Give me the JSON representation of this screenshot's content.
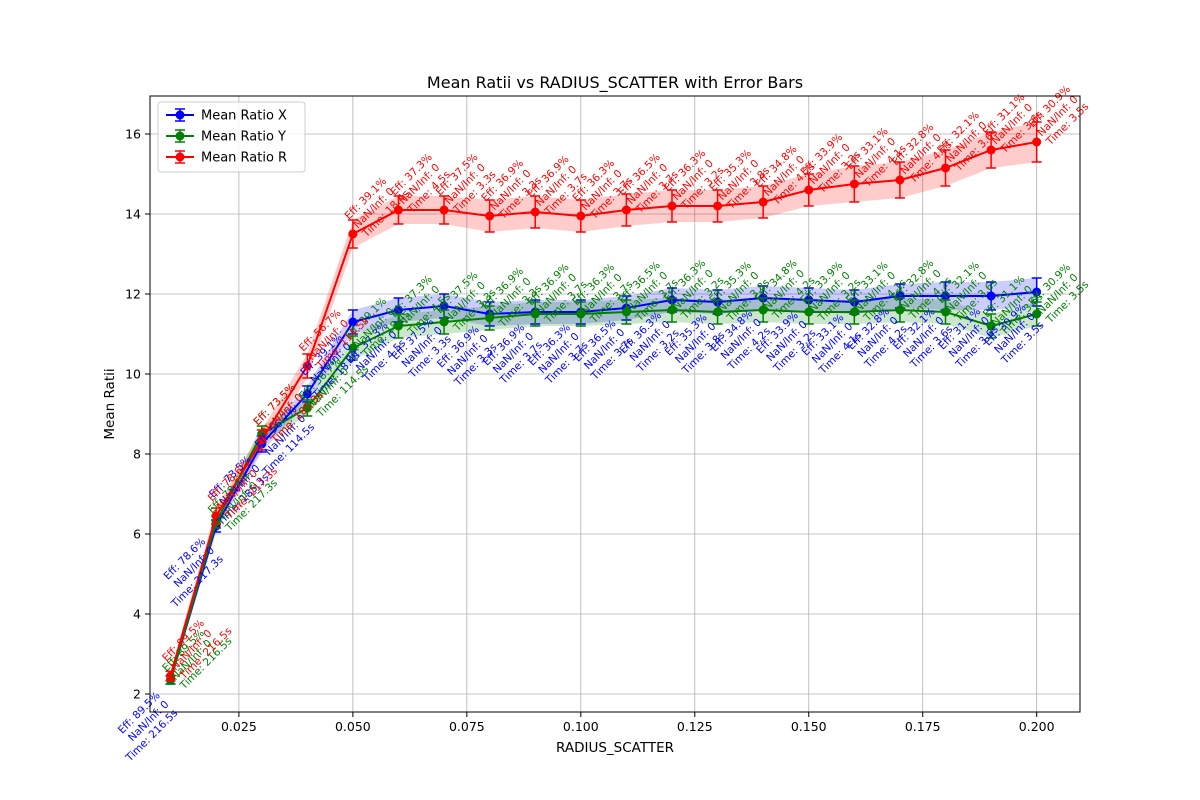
{
  "chart_data": {
    "type": "line",
    "title": "Mean Ratii vs RADIUS_SCATTER with Error Bars",
    "xlabel": "RADIUS_SCATTER",
    "ylabel": "Mean Ratii",
    "xlim": [
      0.0055,
      0.2095
    ],
    "ylim": [
      1.55,
      16.95
    ],
    "xticks": [
      "0.025",
      "0.050",
      "0.075",
      "0.100",
      "0.125",
      "0.150",
      "0.175",
      "0.200"
    ],
    "xtick_values": [
      0.025,
      0.05,
      0.075,
      0.1,
      0.125,
      0.15,
      0.175,
      0.2
    ],
    "yticks": [
      "2",
      "4",
      "6",
      "8",
      "10",
      "12",
      "14",
      "16"
    ],
    "ytick_values": [
      2,
      4,
      6,
      8,
      10,
      12,
      14,
      16
    ],
    "grid": true,
    "legend_position": "top-left",
    "x": [
      0.01,
      0.02,
      0.03,
      0.04,
      0.05,
      0.06,
      0.07,
      0.08,
      0.09,
      0.1,
      0.11,
      0.12,
      0.13,
      0.14,
      0.15,
      0.16,
      0.17,
      0.18,
      0.19,
      0.2
    ],
    "series": [
      {
        "name": "Mean Ratio X",
        "color": "#0000ff",
        "values": [
          2.35,
          6.2,
          8.25,
          9.5,
          11.3,
          11.6,
          11.7,
          11.5,
          11.55,
          11.55,
          11.65,
          11.85,
          11.8,
          11.9,
          11.85,
          11.8,
          11.95,
          11.95,
          11.95,
          12.05
        ],
        "errors": [
          0.1,
          0.15,
          0.2,
          0.2,
          0.3,
          0.3,
          0.3,
          0.3,
          0.3,
          0.3,
          0.3,
          0.3,
          0.3,
          0.3,
          0.3,
          0.3,
          0.3,
          0.35,
          0.35,
          0.35
        ],
        "annotations": [
          [
            "Eff: 89.5%",
            "NaN/Inf: 0",
            "Time: 216.5s"
          ],
          [
            "Eff: 78.6%",
            "NaN/Inf: 0",
            "Time: 217.3s"
          ],
          [
            "Eff: 73.5%",
            "NaN/Inf: 0",
            "Time: 185.3s"
          ],
          [
            "Eff: 56.7%",
            "NaN/Inf: 0",
            "Time: 114.5s"
          ],
          [
            "Eff: 39.1%",
            "NaN/Inf: 0",
            "Time: 18.4s"
          ],
          [
            "Eff: 37.3%",
            "NaN/Inf: 0",
            "Time: 4.5s"
          ],
          [
            "Eff: 37.5%",
            "NaN/Inf: 0",
            "Time: 3.3s"
          ],
          [
            "Eff: 36.9%",
            "NaN/Inf: 0",
            "Time: 3.3s"
          ],
          [
            "Eff: 36.9%",
            "NaN/Inf: 0",
            "Time: 3.7s"
          ],
          [
            "Eff: 36.3%",
            "NaN/Inf: 0",
            "Time: 3.7s"
          ],
          [
            "Eff: 36.5%",
            "NaN/Inf: 0",
            "Time: 3.7s"
          ],
          [
            "Eff: 36.3%",
            "NaN/Inf: 0",
            "Time: 3.2s"
          ],
          [
            "Eff: 35.3%",
            "NaN/Inf: 0",
            "Time: 3.8s"
          ],
          [
            "Eff: 34.8%",
            "NaN/Inf: 0",
            "Time: 4.2s"
          ],
          [
            "Eff: 33.9%",
            "NaN/Inf: 0",
            "Time: 3.2s"
          ],
          [
            "Eff: 33.1%",
            "NaN/Inf: 0",
            "Time: 4.1s"
          ],
          [
            "Eff: 32.8%",
            "NaN/Inf: 0",
            "Time: 4.2s"
          ],
          [
            "Eff: 32.1%",
            "NaN/Inf: 0",
            "Time: 3.6s"
          ],
          [
            "Eff: 31.1%",
            "NaN/Inf: 0",
            "Time: 3.6s"
          ],
          [
            "Eff: 30.9%",
            "NaN/Inf: 0",
            "Time: 3.5s"
          ]
        ]
      },
      {
        "name": "Mean Ratio Y",
        "color": "#008000",
        "values": [
          2.35,
          6.3,
          8.5,
          9.15,
          10.65,
          11.2,
          11.3,
          11.4,
          11.5,
          11.5,
          11.55,
          11.6,
          11.55,
          11.6,
          11.55,
          11.55,
          11.6,
          11.55,
          11.2,
          11.5
        ],
        "errors": [
          0.1,
          0.15,
          0.2,
          0.2,
          0.3,
          0.3,
          0.3,
          0.3,
          0.3,
          0.3,
          0.3,
          0.3,
          0.3,
          0.3,
          0.3,
          0.3,
          0.3,
          0.3,
          0.3,
          0.3
        ],
        "annotations": [
          [
            "Eff: 89.5%",
            "NaN/Inf: 0",
            "Time: 216.5s"
          ],
          [
            "Eff: 78.6%",
            "NaN/Inf: 0",
            "Time: 217.3s"
          ],
          [
            "Eff: 73.5%",
            "NaN/Inf: 0",
            "Time: 185.3s"
          ],
          [
            "Eff: 56.7%",
            "NaN/Inf: 0",
            "Time: 114.5s"
          ],
          [
            "Eff: 39.1%",
            "NaN/Inf: 0",
            "Time: 18.4s"
          ],
          [
            "Eff: 37.3%",
            "NaN/Inf: 0",
            "Time: 4.5s"
          ],
          [
            "Eff: 37.5%",
            "NaN/Inf: 0",
            "Time: 3.3s"
          ],
          [
            "Eff: 36.9%",
            "NaN/Inf: 0",
            "Time: 3.3s"
          ],
          [
            "Eff: 36.9%",
            "NaN/Inf: 0",
            "Time: 3.7s"
          ],
          [
            "Eff: 36.3%",
            "NaN/Inf: 0",
            "Time: 3.7s"
          ],
          [
            "Eff: 36.5%",
            "NaN/Inf: 0",
            "Time: 3.7s"
          ],
          [
            "Eff: 36.3%",
            "NaN/Inf: 0",
            "Time: 3.2s"
          ],
          [
            "Eff: 35.3%",
            "NaN/Inf: 0",
            "Time: 3.8s"
          ],
          [
            "Eff: 34.8%",
            "NaN/Inf: 0",
            "Time: 4.2s"
          ],
          [
            "Eff: 33.9%",
            "NaN/Inf: 0",
            "Time: 3.2s"
          ],
          [
            "Eff: 33.1%",
            "NaN/Inf: 0",
            "Time: 4.1s"
          ],
          [
            "Eff: 32.8%",
            "NaN/Inf: 0",
            "Time: 4.2s"
          ],
          [
            "Eff: 32.1%",
            "NaN/Inf: 0",
            "Time: 3.6s"
          ],
          [
            "Eff: 31.1%",
            "NaN/Inf: 0",
            "Time: 3.6s"
          ],
          [
            "Eff: 30.9%",
            "NaN/Inf: 0",
            "Time: 3.5s"
          ]
        ]
      },
      {
        "name": "Mean Ratio R",
        "color": "#ff0000",
        "values": [
          2.45,
          6.45,
          8.35,
          10.2,
          13.5,
          14.1,
          14.1,
          13.95,
          14.05,
          13.95,
          14.1,
          14.2,
          14.2,
          14.3,
          14.6,
          14.75,
          14.85,
          15.15,
          15.6,
          15.8
        ],
        "errors": [
          0.12,
          0.2,
          0.25,
          0.3,
          0.35,
          0.35,
          0.35,
          0.4,
          0.4,
          0.4,
          0.4,
          0.4,
          0.4,
          0.4,
          0.4,
          0.45,
          0.45,
          0.45,
          0.45,
          0.5
        ],
        "annotations": [
          [
            "Eff: 89.5%",
            "NaN/Inf: 0",
            "Time: 216.5s"
          ],
          [
            "Eff: 78.6%",
            "NaN/Inf: 0",
            "Time: 217.3s"
          ],
          [
            "Eff: 73.5%",
            "NaN/Inf: 0",
            "Time: 185.3s"
          ],
          [
            "Eff: 56.7%",
            "NaN/Inf: 0",
            "Time: 114.5s"
          ],
          [
            "Eff: 39.1%",
            "NaN/Inf: 0",
            "Time: 18.4s"
          ],
          [
            "Eff: 37.3%",
            "NaN/Inf: 0",
            "Time: 4.5s"
          ],
          [
            "Eff: 37.5%",
            "NaN/Inf: 0",
            "Time: 3.3s"
          ],
          [
            "Eff: 36.9%",
            "NaN/Inf: 0",
            "Time: 3.3s"
          ],
          [
            "Eff: 36.9%",
            "NaN/Inf: 0",
            "Time: 3.7s"
          ],
          [
            "Eff: 36.3%",
            "NaN/Inf: 0",
            "Time: 3.7s"
          ],
          [
            "Eff: 36.5%",
            "NaN/Inf: 0",
            "Time: 3.7s"
          ],
          [
            "Eff: 36.3%",
            "NaN/Inf: 0",
            "Time: 3.2s"
          ],
          [
            "Eff: 35.3%",
            "NaN/Inf: 0",
            "Time: 3.8s"
          ],
          [
            "Eff: 34.8%",
            "NaN/Inf: 0",
            "Time: 4.2s"
          ],
          [
            "Eff: 33.9%",
            "NaN/Inf: 0",
            "Time: 3.2s"
          ],
          [
            "Eff: 33.1%",
            "NaN/Inf: 0",
            "Time: 4.1s"
          ],
          [
            "Eff: 32.8%",
            "NaN/Inf: 0",
            "Time: 4.2s"
          ],
          [
            "Eff: 32.1%",
            "NaN/Inf: 0",
            "Time: 3.6s"
          ],
          [
            "Eff: 31.1%",
            "NaN/Inf: 0",
            "Time: 3.6s"
          ],
          [
            "Eff: 30.9%",
            "NaN/Inf: 0",
            "Time: 3.5s"
          ]
        ]
      }
    ]
  }
}
